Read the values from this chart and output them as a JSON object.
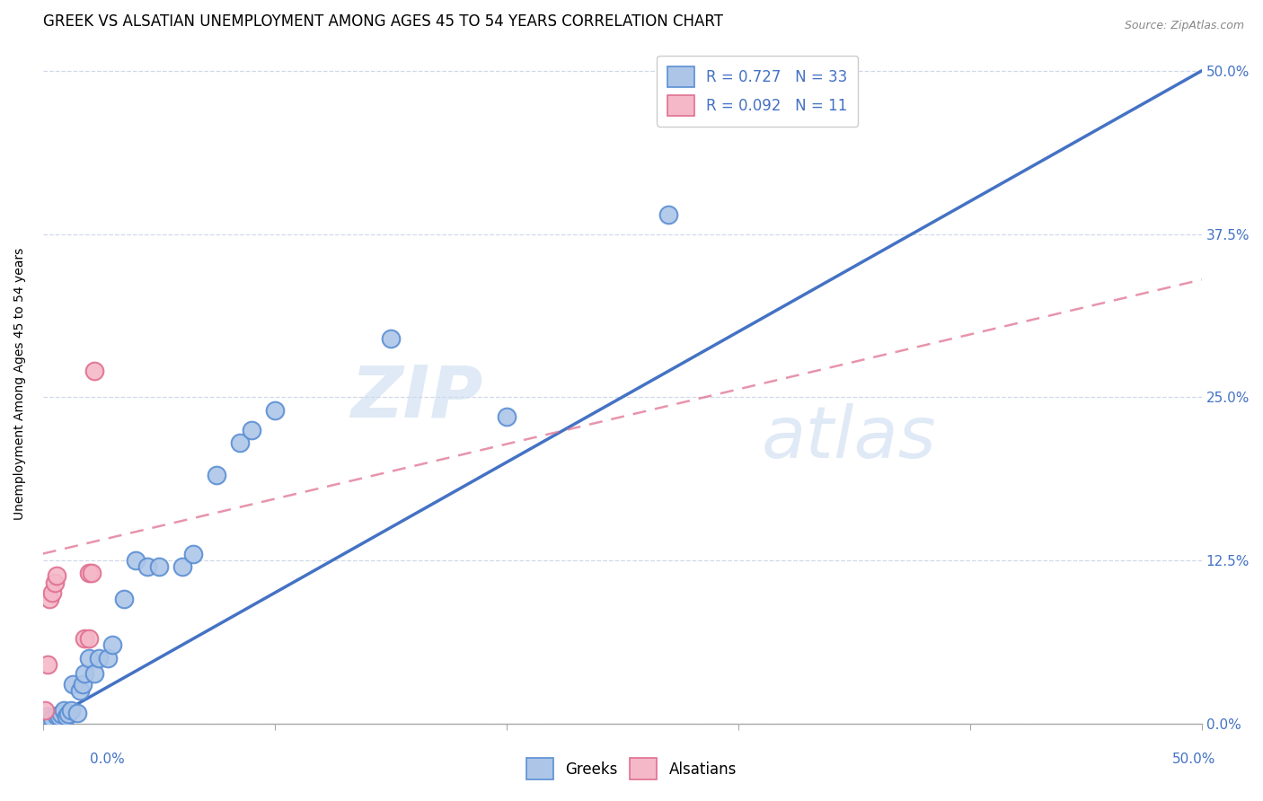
{
  "title": "GREEK VS ALSATIAN UNEMPLOYMENT AMONG AGES 45 TO 54 YEARS CORRELATION CHART",
  "source": "Source: ZipAtlas.com",
  "ylabel": "Unemployment Among Ages 45 to 54 years",
  "ytick_labels": [
    "0.0%",
    "12.5%",
    "25.0%",
    "37.5%",
    "50.0%"
  ],
  "ytick_values": [
    0.0,
    0.125,
    0.25,
    0.375,
    0.5
  ],
  "xtick_labels": [
    "0.0%",
    "50.0%"
  ],
  "xlim": [
    0.0,
    0.5
  ],
  "ylim": [
    0.0,
    0.52
  ],
  "greek_R": 0.727,
  "greek_N": 33,
  "alsatian_R": 0.092,
  "alsatian_N": 11,
  "watermark_zip": "ZIP",
  "watermark_atlas": "atlas",
  "greek_scatter_color": "#adc6e8",
  "greek_scatter_edge": "#5b8fd4",
  "greek_line_color": "#4472c4",
  "alsatian_scatter_color": "#f4b8c8",
  "alsatian_scatter_edge": "#e07090",
  "alsatian_line_color": "#e07090",
  "grid_color": "#d0d8e8",
  "legend_text_color": "#4472c4",
  "greek_points_x": [
    0.001,
    0.002,
    0.004,
    0.006,
    0.007,
    0.008,
    0.009,
    0.01,
    0.011,
    0.012,
    0.013,
    0.015,
    0.016,
    0.017,
    0.018,
    0.02,
    0.022,
    0.024,
    0.028,
    0.03,
    0.035,
    0.04,
    0.045,
    0.05,
    0.06,
    0.065,
    0.075,
    0.085,
    0.09,
    0.1,
    0.15,
    0.2,
    0.27
  ],
  "greek_points_y": [
    0.002,
    0.005,
    0.004,
    0.006,
    0.005,
    0.007,
    0.01,
    0.005,
    0.007,
    0.01,
    0.03,
    0.008,
    0.025,
    0.03,
    0.038,
    0.05,
    0.038,
    0.05,
    0.05,
    0.06,
    0.095,
    0.125,
    0.12,
    0.12,
    0.12,
    0.13,
    0.19,
    0.215,
    0.225,
    0.24,
    0.295,
    0.235,
    0.39
  ],
  "alsatian_points_x": [
    0.001,
    0.002,
    0.003,
    0.004,
    0.005,
    0.006,
    0.018,
    0.02,
    0.02,
    0.021,
    0.022
  ],
  "alsatian_points_y": [
    0.01,
    0.045,
    0.095,
    0.1,
    0.108,
    0.113,
    0.065,
    0.065,
    0.115,
    0.115,
    0.27
  ],
  "greek_line_x0": 0.0,
  "greek_line_y0": 0.0,
  "greek_line_x1": 0.5,
  "greek_line_y1": 0.5,
  "alsatian_line_x0": 0.0,
  "alsatian_line_y0": 0.13,
  "alsatian_line_x1": 0.5,
  "alsatian_line_y1": 0.34,
  "title_fontsize": 12,
  "axis_label_fontsize": 10,
  "tick_fontsize": 11,
  "source_fontsize": 9,
  "legend_fontsize": 12
}
